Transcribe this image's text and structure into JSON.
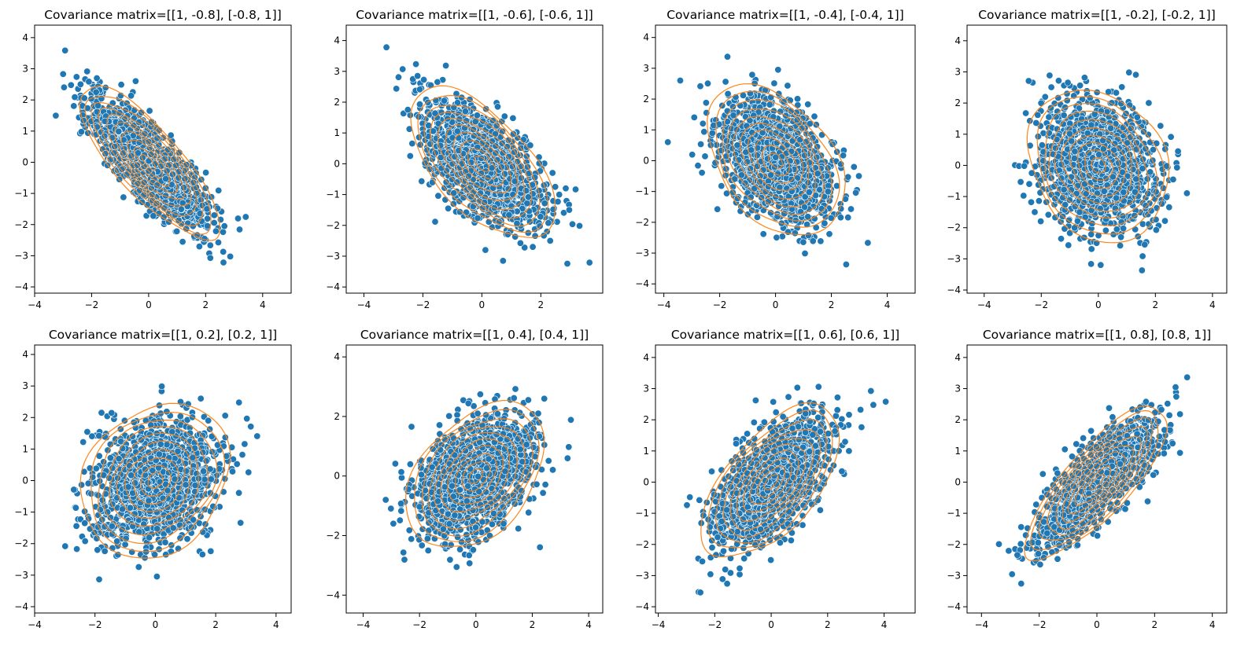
{
  "chart_data": [
    {
      "type": "scatter",
      "title": "Covariance matrix=[[1, -0.8], [-0.8, 1]]",
      "covariance": [
        [
          1,
          -0.8
        ],
        [
          -0.8,
          1
        ]
      ],
      "contours": "kde",
      "xlim": [
        -4,
        5
      ],
      "ylim": [
        -4.2,
        4.4
      ],
      "xticks": [
        -4,
        -2,
        0,
        2,
        4
      ],
      "yticks": [
        -4,
        -3,
        -2,
        -1,
        0,
        1,
        2,
        3,
        4
      ],
      "xtick_labels": [
        "−4",
        "−2",
        "0",
        "2",
        "4"
      ],
      "ytick_labels": [
        "−4",
        "−3",
        "−2",
        "−1",
        "0",
        "1",
        "2",
        "3",
        "4"
      ],
      "point_color": "#1f77b4",
      "contour_color": "#ff7f0e"
    },
    {
      "type": "scatter",
      "title": "Covariance matrix=[[1, -0.6], [-0.6, 1]]",
      "covariance": [
        [
          1,
          -0.6
        ],
        [
          -0.6,
          1
        ]
      ],
      "contours": "kde",
      "xlim": [
        -4.6,
        4.1
      ],
      "ylim": [
        -4.2,
        4.5
      ],
      "xticks": [
        -4,
        -2,
        0,
        2
      ],
      "yticks": [
        -4,
        -3,
        -2,
        -1,
        0,
        1,
        2,
        3,
        4
      ],
      "xtick_labels": [
        "−4",
        "−2",
        "0",
        "2"
      ],
      "ytick_labels": [
        "−4",
        "−3",
        "−2",
        "−1",
        "0",
        "1",
        "2",
        "3",
        "4"
      ],
      "point_color": "#1f77b4",
      "contour_color": "#ff7f0e"
    },
    {
      "type": "scatter",
      "title": "Covariance matrix=[[1, -0.4], [-0.4, 1]]",
      "covariance": [
        [
          1,
          -0.4
        ],
        [
          -0.4,
          1
        ]
      ],
      "contours": "kde",
      "xlim": [
        -4.3,
        5
      ],
      "ylim": [
        -4.3,
        4.4
      ],
      "xticks": [
        -4,
        -2,
        0,
        2,
        4
      ],
      "yticks": [
        -4,
        -3,
        -2,
        -1,
        0,
        1,
        2,
        3,
        4
      ],
      "xtick_labels": [
        "−4",
        "−2",
        "0",
        "2",
        "4"
      ],
      "ytick_labels": [
        "−4",
        "−3",
        "−2",
        "−1",
        "0",
        "1",
        "2",
        "3",
        "4"
      ],
      "point_color": "#1f77b4",
      "contour_color": "#ff7f0e"
    },
    {
      "type": "scatter",
      "title": "Covariance matrix=[[1, -0.2], [-0.2, 1]]",
      "covariance": [
        [
          1,
          -0.2
        ],
        [
          -0.2,
          1
        ]
      ],
      "contours": "kde",
      "xlim": [
        -4.6,
        4.5
      ],
      "ylim": [
        -4.1,
        4.5
      ],
      "xticks": [
        -4,
        -2,
        0,
        2,
        4
      ],
      "yticks": [
        -4,
        -3,
        -2,
        -1,
        0,
        1,
        2,
        3,
        4
      ],
      "xtick_labels": [
        "−4",
        "−2",
        "0",
        "2",
        "4"
      ],
      "ytick_labels": [
        "−4",
        "−3",
        "−2",
        "−1",
        "0",
        "1",
        "2",
        "3",
        "4"
      ],
      "point_color": "#1f77b4",
      "contour_color": "#ff7f0e"
    },
    {
      "type": "scatter",
      "title": "Covariance matrix=[[1, 0.2], [0.2, 1]]",
      "covariance": [
        [
          1,
          0.2
        ],
        [
          0.2,
          1
        ]
      ],
      "contours": "kde",
      "xlim": [
        -4,
        4.5
      ],
      "ylim": [
        -4.2,
        4.3
      ],
      "xticks": [
        -4,
        -2,
        0,
        2,
        4
      ],
      "yticks": [
        -4,
        -3,
        -2,
        -1,
        0,
        1,
        2,
        3,
        4
      ],
      "xtick_labels": [
        "−4",
        "−2",
        "0",
        "2",
        "4"
      ],
      "ytick_labels": [
        "−4",
        "−3",
        "−2",
        "−1",
        "0",
        "1",
        "2",
        "3",
        "4"
      ],
      "point_color": "#1f77b4",
      "contour_color": "#ff7f0e"
    },
    {
      "type": "scatter",
      "title": "Covariance matrix=[[1, 0.4], [0.4, 1]]",
      "covariance": [
        [
          1,
          0.4
        ],
        [
          0.4,
          1
        ]
      ],
      "contours": "kde",
      "xlim": [
        -4.6,
        4.5
      ],
      "ylim": [
        -4.6,
        4.4
      ],
      "xticks": [
        -4,
        -2,
        0,
        2,
        4
      ],
      "yticks": [
        -4,
        -2,
        0,
        2,
        4
      ],
      "xtick_labels": [
        "−4",
        "−2",
        "0",
        "2",
        "4"
      ],
      "ytick_labels": [
        "−4",
        "−2",
        "0",
        "2",
        "4"
      ],
      "point_color": "#1f77b4",
      "contour_color": "#ff7f0e"
    },
    {
      "type": "scatter",
      "title": "Covariance matrix=[[1, 0.6], [0.6, 1]]",
      "covariance": [
        [
          1,
          0.6
        ],
        [
          0.6,
          1
        ]
      ],
      "contours": "kde",
      "xlim": [
        -4.1,
        5.1
      ],
      "ylim": [
        -4.2,
        4.4
      ],
      "xticks": [
        -4,
        -2,
        0,
        2,
        4
      ],
      "yticks": [
        -4,
        -3,
        -2,
        -1,
        0,
        1,
        2,
        3,
        4
      ],
      "xtick_labels": [
        "−4",
        "−2",
        "0",
        "2",
        "4"
      ],
      "ytick_labels": [
        "−4",
        "−3",
        "−2",
        "−1",
        "0",
        "1",
        "2",
        "3",
        "4"
      ],
      "point_color": "#1f77b4",
      "contour_color": "#ff7f0e"
    },
    {
      "type": "scatter",
      "title": "Covariance matrix=[[1, 0.8], [0.8, 1]]",
      "covariance": [
        [
          1,
          0.8
        ],
        [
          0.8,
          1
        ]
      ],
      "contours": "kde",
      "xlim": [
        -4.5,
        4.5
      ],
      "ylim": [
        -4.2,
        4.4
      ],
      "xticks": [
        -4,
        -2,
        0,
        2,
        4
      ],
      "yticks": [
        -4,
        -3,
        -2,
        -1,
        0,
        1,
        2,
        3,
        4
      ],
      "xtick_labels": [
        "−4",
        "−2",
        "0",
        "2",
        "4"
      ],
      "ytick_labels": [
        "−4",
        "−3",
        "−2",
        "−1",
        "0",
        "1",
        "2",
        "3",
        "4"
      ],
      "point_color": "#1f77b4",
      "contour_color": "#ff7f0e"
    }
  ]
}
